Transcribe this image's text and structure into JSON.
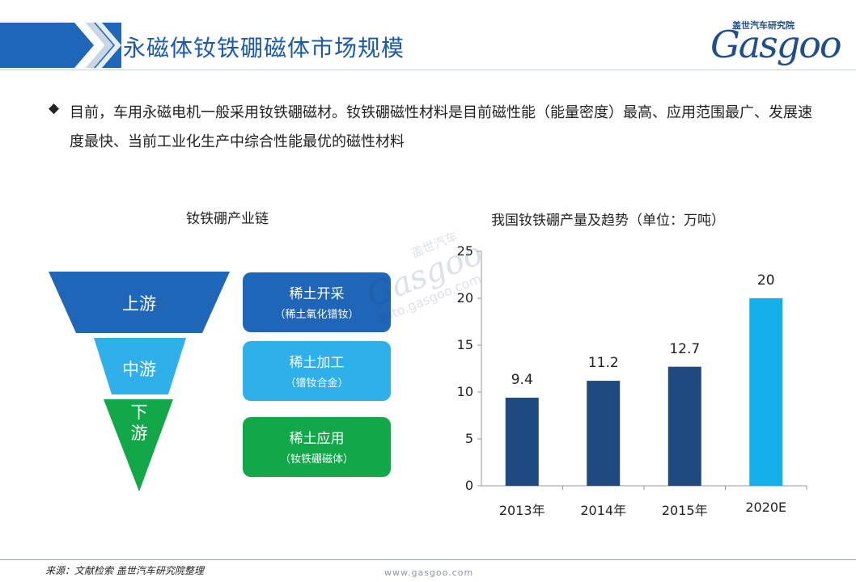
{
  "header": {
    "title": "永磁体钕铁硼磁体市场规模",
    "logo_cn": "盖世汽车研究院",
    "logo_en": "Gasgoo"
  },
  "bullet": {
    "icon": "diamond-bullet",
    "text": "目前，车用永磁电机一般采用钕铁硼磁材。钕铁硼磁性材料是目前磁性能（能量密度）最高、应用范围最广、发展速度最快、当前工业化生产中综合性能最优的磁性材料"
  },
  "chain": {
    "title": "钕铁硼产业链",
    "funnel": [
      {
        "label": "上游",
        "color": "#1f65b8"
      },
      {
        "label": "中游",
        "color": "#2fb0ea"
      },
      {
        "label": "下\n游",
        "color": "#12a84a"
      }
    ],
    "boxes": [
      {
        "main": "稀土开采",
        "sub": "（稀土氧化镨钕）",
        "color": "#1f65b8"
      },
      {
        "main": "稀土加工",
        "sub": "（镨钕合金）",
        "color": "#2fb0ea"
      },
      {
        "main": "稀土应用",
        "sub": "（钕铁硼磁体）",
        "color": "#12a84a"
      }
    ]
  },
  "chart_title": "我国钕铁硼产量及趋势（单位：万吨）",
  "chart_data": {
    "type": "bar",
    "title": "我国钕铁硼产量及趋势（单位：万吨）",
    "categories": [
      "2013年",
      "2014年",
      "2015年",
      "2020E"
    ],
    "values": [
      9.4,
      11.2,
      12.7,
      20
    ],
    "value_labels": [
      "9.4",
      "11.2",
      "12.7",
      "20"
    ],
    "colors": [
      "#1f4a7f",
      "#1f4a7f",
      "#1f4a7f",
      "#14aeea"
    ],
    "ylim": [
      0,
      25
    ],
    "yticks": [
      "0",
      "5",
      "10",
      "15",
      "20",
      "25"
    ],
    "grid": false
  },
  "watermark": {
    "cn": "盖世汽车",
    "en": "Gasgoo",
    "url": "auto.gasgoo.com"
  },
  "footer": {
    "source": "来源：文献检索  盖世汽车研究院整理",
    "url": "www.gasgoo.com"
  }
}
